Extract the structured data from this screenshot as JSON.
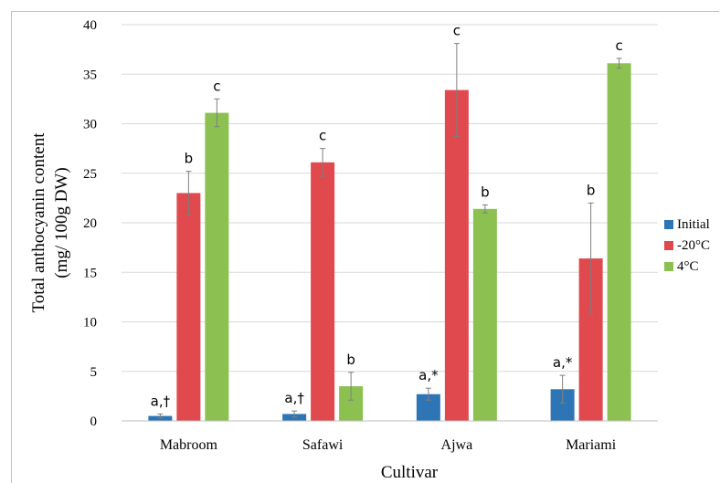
{
  "chart_data": {
    "type": "bar",
    "ylabel": [
      "Total anthocyanin content",
      "(mg/ 100g DW)"
    ],
    "xlabel": "Cultivar",
    "ylim": [
      0,
      40
    ],
    "yticks": [
      0,
      5,
      10,
      15,
      20,
      25,
      30,
      35,
      40
    ],
    "ytick_labels": [
      "0",
      "5",
      "10",
      "15",
      "20",
      "25",
      "30",
      "35",
      "40"
    ],
    "categories": [
      "Mabroom",
      "Safawi",
      "Ajwa",
      "Mariami"
    ],
    "grid": true,
    "legend_position": "right",
    "series": [
      {
        "name": "Initial",
        "color": "#2e75b6",
        "values": [
          0.5,
          0.7,
          2.7,
          3.2
        ],
        "errors": [
          0.2,
          0.3,
          0.6,
          1.4
        ],
        "labels": [
          "a,†",
          "a,†",
          "a,*",
          "a,*"
        ]
      },
      {
        "name": "-20°C",
        "color": "#e0494d",
        "values": [
          23.0,
          26.1,
          33.4,
          16.4
        ],
        "errors": [
          2.2,
          1.4,
          4.7,
          5.6
        ],
        "labels": [
          "b",
          "c",
          "c",
          "b"
        ]
      },
      {
        "name": "4°C",
        "color": "#8cc152",
        "values": [
          31.1,
          3.5,
          21.4,
          36.1
        ],
        "errors": [
          1.4,
          1.4,
          0.4,
          0.5
        ],
        "labels": [
          "c",
          "b",
          "b",
          "c"
        ]
      }
    ]
  }
}
